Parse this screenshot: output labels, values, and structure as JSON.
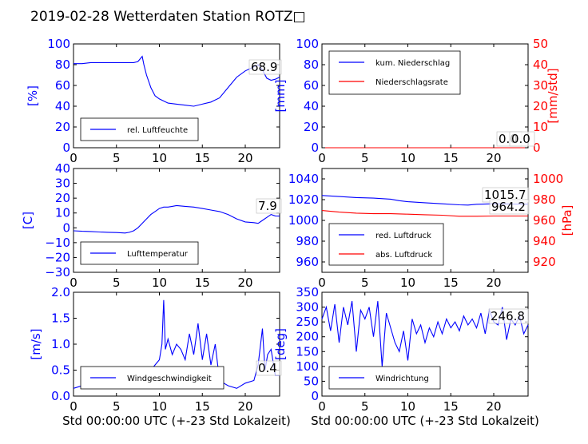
{
  "figure": {
    "title": "2019-02-28 Wetterdaten Station ROTZ□"
  },
  "chart_data": [
    {
      "id": "humidity",
      "type": "line",
      "ylabel": "[%]",
      "xlabel": "",
      "xlim": [
        0,
        24
      ],
      "ylim": [
        0,
        100
      ],
      "xticks": [
        "0",
        "5",
        "10",
        "15",
        "20"
      ],
      "yticks": [
        "0",
        "20",
        "40",
        "60",
        "80",
        "100"
      ],
      "legend": "lower-left",
      "series": [
        {
          "name": "rel. Luftfeuchte",
          "color": "#0000ff",
          "x": [
            0,
            1,
            2,
            3,
            4,
            5,
            6,
            7,
            7.5,
            8,
            8.2,
            8.5,
            9,
            9.5,
            10,
            10.5,
            11,
            12,
            13,
            14,
            15,
            16,
            17,
            18,
            19,
            20,
            21,
            21.5,
            22,
            22.5,
            23,
            23.5,
            24
          ],
          "y": [
            81,
            81,
            82,
            82,
            82,
            82,
            82,
            82,
            83,
            88,
            80,
            70,
            58,
            50,
            47,
            45,
            43,
            42,
            41,
            40,
            42,
            44,
            48,
            58,
            68,
            74,
            78,
            80,
            75,
            67,
            65,
            66,
            68
          ]
        }
      ],
      "annotations": [
        "68.9"
      ]
    },
    {
      "id": "precip",
      "type": "line",
      "ylabel": "[mm]",
      "y2label": "[mm/std]",
      "xlim": [
        0,
        24
      ],
      "ylim": [
        0,
        100
      ],
      "y2lim": [
        0,
        50
      ],
      "xticks": [
        "0",
        "5",
        "10",
        "15",
        "20"
      ],
      "yticks": [
        "0",
        "20",
        "40",
        "60",
        "80",
        "100"
      ],
      "y2ticks": [
        "0",
        "10",
        "20",
        "30",
        "40",
        "50"
      ],
      "legend": "upper-left",
      "series": [
        {
          "name": "kum. Niederschlag",
          "color": "#0000ff",
          "x": [
            0,
            24
          ],
          "y": [
            0,
            0
          ]
        },
        {
          "name": "Niederschlagsrate",
          "color": "#ff0000",
          "axis": "right",
          "x": [
            0,
            24
          ],
          "y": [
            0,
            0
          ]
        }
      ],
      "annotations": [
        "0.0",
        "0.0"
      ]
    },
    {
      "id": "temperature",
      "type": "line",
      "ylabel": "[C]",
      "xlim": [
        0,
        24
      ],
      "ylim": [
        -30,
        40
      ],
      "xticks": [
        "0",
        "5",
        "10",
        "15",
        "20"
      ],
      "yticks": [
        "−30",
        "−20",
        "−10",
        "0",
        "10",
        "20",
        "30",
        "40"
      ],
      "legend": "lower-left",
      "series": [
        {
          "name": "Lufttemperatur",
          "color": "#0000ff",
          "x": [
            0,
            1,
            2,
            3,
            4,
            5,
            6,
            6.5,
            7,
            7.5,
            8,
            8.5,
            9,
            9.5,
            10,
            10.5,
            11,
            11.5,
            12,
            13,
            14,
            15,
            16,
            17,
            18,
            19,
            20,
            21,
            21.5,
            22,
            22.5,
            23,
            23.5,
            24
          ],
          "y": [
            -2,
            -2.3,
            -2.5,
            -2.8,
            -3,
            -3.2,
            -3.5,
            -3,
            -2,
            0,
            3,
            6,
            9,
            11,
            13,
            14,
            14,
            14.5,
            15,
            14.5,
            14,
            13,
            12,
            11,
            9,
            6,
            4,
            3.5,
            3,
            5,
            7,
            9,
            8,
            7.9
          ]
        }
      ],
      "annotations": [
        "7.9"
      ]
    },
    {
      "id": "pressure",
      "type": "line",
      "y2label": "[hPa]",
      "xlim": [
        0,
        24
      ],
      "ylim": [
        950,
        1050
      ],
      "y2lim": [
        910,
        1010
      ],
      "xticks": [
        "0",
        "5",
        "10",
        "15",
        "20"
      ],
      "yticks": [
        "960",
        "980",
        "1000",
        "1020",
        "1040"
      ],
      "y2ticks": [
        "920",
        "940",
        "960",
        "980",
        "1000"
      ],
      "legend": "lower-left",
      "series": [
        {
          "name": "red. Luftdruck",
          "color": "#0000ff",
          "x": [
            0,
            2,
            4,
            6,
            8,
            9,
            10,
            12,
            14,
            16,
            17,
            18,
            20,
            22,
            24
          ],
          "y": [
            1024,
            1023,
            1022,
            1021.5,
            1020.5,
            1019,
            1018,
            1017,
            1016,
            1015,
            1014.8,
            1015.5,
            1016,
            1015.8,
            1015.7
          ]
        },
        {
          "name": "abs. Luftdruck",
          "color": "#ff0000",
          "axis": "right",
          "x": [
            0,
            2,
            4,
            6,
            8,
            10,
            12,
            14,
            16,
            18,
            20,
            22,
            24
          ],
          "y": [
            969.5,
            968,
            967,
            966.5,
            966.5,
            966,
            965.5,
            965,
            964,
            964,
            964.2,
            964.2,
            964.2
          ]
        }
      ],
      "annotations": [
        "1015.7",
        "964.2"
      ]
    },
    {
      "id": "windspeed",
      "type": "line",
      "ylabel": "[m/s]",
      "xlabel": "Std 00:00:00 UTC (+-23 Std Lokalzeit)",
      "xlim": [
        0,
        24
      ],
      "ylim": [
        0,
        2.0
      ],
      "xticks": [
        "0",
        "5",
        "10",
        "15",
        "20"
      ],
      "yticks": [
        "0.0",
        "0.5",
        "1.0",
        "1.5",
        "2.0"
      ],
      "legend": "lower-left",
      "series": [
        {
          "name": "Windgeschwindigkeit",
          "color": "#0000ff",
          "x": [
            0,
            1,
            2,
            3,
            4,
            5,
            6,
            7,
            8,
            8.5,
            9,
            9.5,
            10,
            10.3,
            10.5,
            10.7,
            11,
            11.5,
            12,
            12.5,
            13,
            13.5,
            14,
            14.5,
            15,
            15.5,
            16,
            16.5,
            17,
            17.5,
            18,
            19,
            20,
            21,
            21.5,
            22,
            22.3,
            22.6,
            23,
            23.5,
            24
          ],
          "y": [
            0.15,
            0.2,
            0.15,
            0.2,
            0.25,
            0.3,
            0.25,
            0.3,
            0.35,
            0.4,
            0.5,
            0.6,
            0.7,
            1.0,
            1.85,
            0.9,
            1.1,
            0.8,
            1.0,
            0.9,
            0.7,
            1.2,
            0.8,
            1.4,
            0.7,
            1.2,
            0.6,
            1.0,
            0.3,
            0.25,
            0.2,
            0.15,
            0.25,
            0.3,
            0.6,
            1.3,
            0.5,
            0.8,
            0.9,
            0.4,
            0.4
          ]
        }
      ],
      "annotations": [
        "0.4"
      ]
    },
    {
      "id": "winddir",
      "type": "line",
      "ylabel": "[deg]",
      "xlabel": "Std 00:00:00 UTC (+-23 Std Lokalzeit)",
      "xlim": [
        0,
        24
      ],
      "ylim": [
        0,
        350
      ],
      "xticks": [
        "0",
        "5",
        "10",
        "15",
        "20"
      ],
      "yticks": [
        "0",
        "50",
        "100",
        "150",
        "200",
        "250",
        "300",
        "350"
      ],
      "legend": "lower-left",
      "series": [
        {
          "name": "Windrichtung",
          "color": "#0000ff",
          "x": [
            0,
            0.5,
            1,
            1.5,
            2,
            2.5,
            3,
            3.5,
            4,
            4.5,
            5,
            5.5,
            6,
            6.5,
            7,
            7.5,
            8,
            8.5,
            9,
            9.5,
            10,
            10.5,
            11,
            11.5,
            12,
            12.5,
            13,
            13.5,
            14,
            14.5,
            15,
            15.5,
            16,
            16.5,
            17,
            17.5,
            18,
            18.5,
            19,
            19.5,
            20,
            20.5,
            21,
            21.5,
            22,
            22.5,
            23,
            23.5,
            24
          ],
          "y": [
            260,
            300,
            220,
            310,
            180,
            300,
            240,
            320,
            150,
            290,
            260,
            300,
            200,
            320,
            100,
            280,
            230,
            180,
            150,
            220,
            120,
            260,
            210,
            240,
            180,
            230,
            200,
            250,
            210,
            260,
            230,
            250,
            220,
            270,
            240,
            260,
            230,
            280,
            210,
            290,
            250,
            240,
            300,
            190,
            260,
            240,
            270,
            210,
            240
          ]
        }
      ],
      "annotations": [
        "246.8"
      ]
    }
  ]
}
